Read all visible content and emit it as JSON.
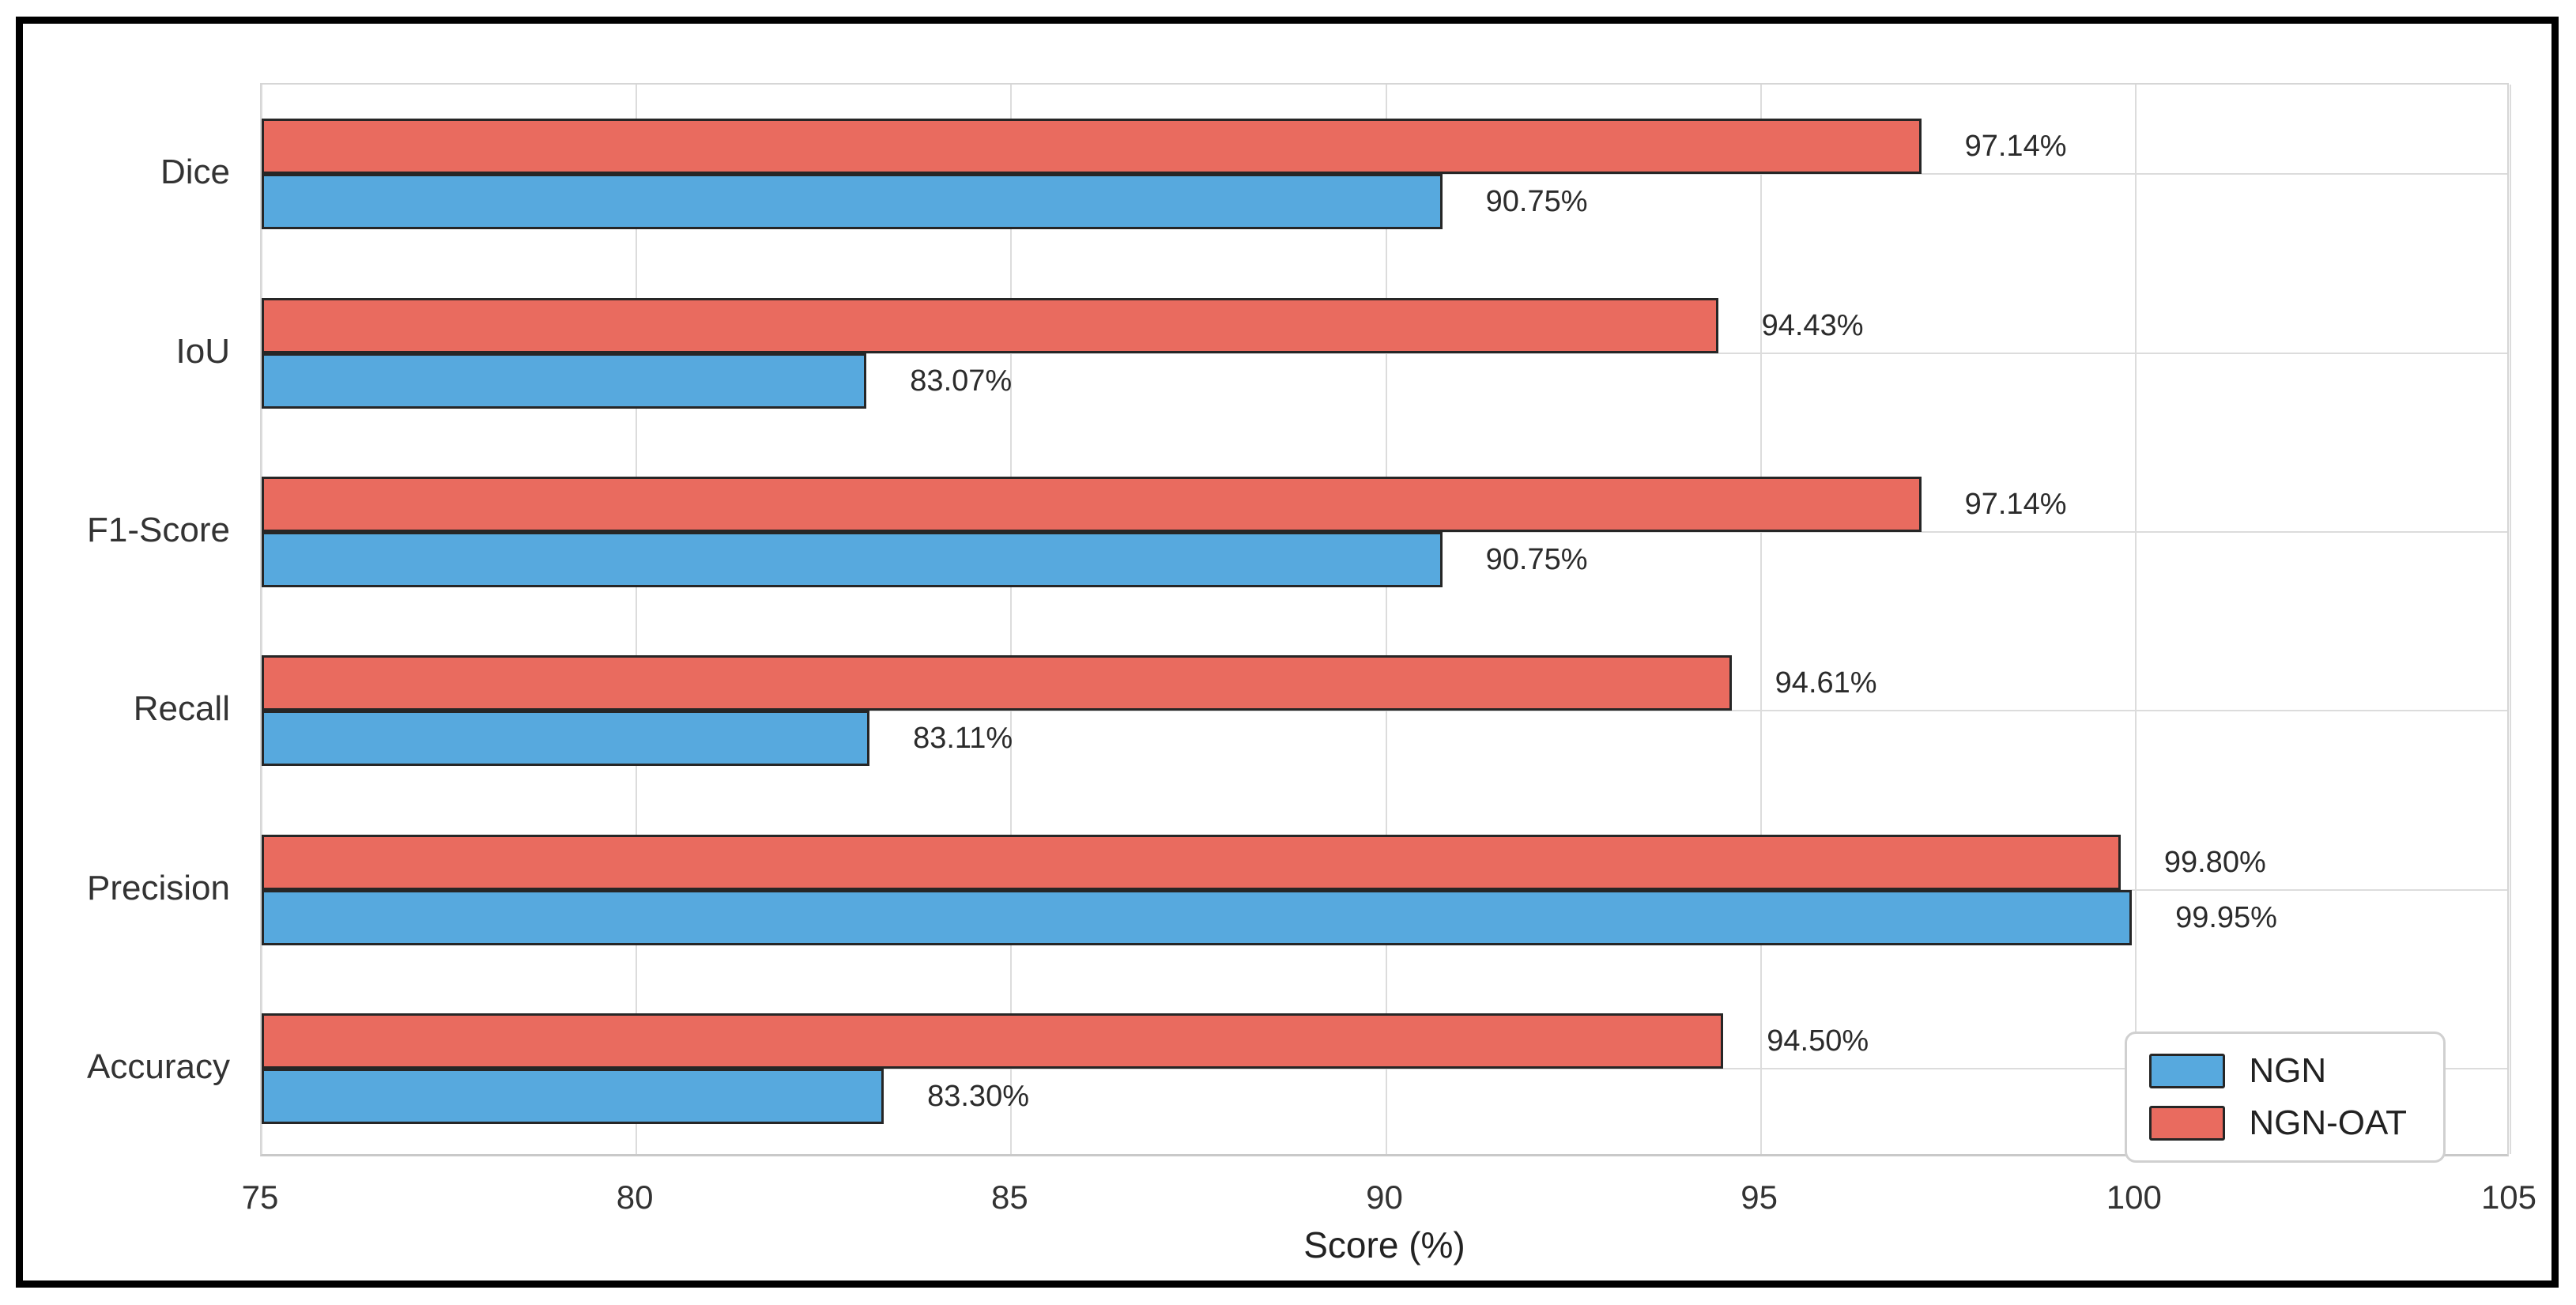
{
  "chart_data": {
    "type": "bar",
    "orientation": "horizontal",
    "xlabel": "Score (%)",
    "xlim": [
      75,
      105
    ],
    "xticks": [
      75,
      80,
      85,
      90,
      95,
      100,
      105
    ],
    "grid": true,
    "legend_position": "lower right",
    "categories": [
      "Dice",
      "IoU",
      "F1-Score",
      "Recall",
      "Precision",
      "Accuracy"
    ],
    "series": [
      {
        "name": "NGN",
        "color": "#57A9DE",
        "row": 1,
        "values": [
          90.75,
          83.07,
          90.75,
          83.11,
          99.95,
          83.3
        ],
        "labels": [
          "90.75%",
          "83.07%",
          "90.75%",
          "83.11%",
          "99.95%",
          "83.30%"
        ]
      },
      {
        "name": "NGN-OAT",
        "color": "#E96B5F",
        "row": 0,
        "values": [
          97.14,
          94.43,
          97.14,
          94.61,
          99.8,
          94.5
        ],
        "labels": [
          "97.14%",
          "94.43%",
          "97.14%",
          "94.61%",
          "99.80%",
          "94.50%"
        ]
      }
    ],
    "bar_edge_color": "#262626"
  },
  "style": {
    "grid_color": "#dcdcdc",
    "spine_color": "#d6d6d6",
    "figure_border_color": "#000000",
    "text_color": "#333333"
  }
}
